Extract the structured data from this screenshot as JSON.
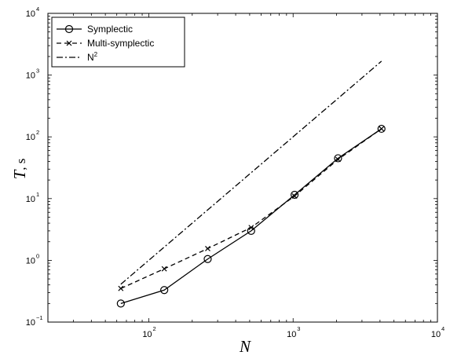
{
  "chart_data": {
    "type": "line",
    "title": "",
    "xlabel": "N",
    "ylabel": "T, s",
    "xscale": "log",
    "yscale": "log",
    "xlim": [
      20,
      10000
    ],
    "ylim": [
      0.1,
      10000
    ],
    "grid": false,
    "legend_position": "top-left",
    "x_ticks": [
      {
        "base": "10",
        "exp": "2"
      },
      {
        "base": "10",
        "exp": "3"
      },
      {
        "base": "10",
        "exp": "4"
      }
    ],
    "y_ticks": [
      {
        "base": "10",
        "exp": "−1"
      },
      {
        "base": "10",
        "exp": "0"
      },
      {
        "base": "10",
        "exp": "1"
      },
      {
        "base": "10",
        "exp": "2"
      },
      {
        "base": "10",
        "exp": "3"
      },
      {
        "base": "10",
        "exp": "4"
      }
    ],
    "series": [
      {
        "name": "Symplectic",
        "marker": "circle",
        "linestyle": "solid",
        "color": "#000000",
        "x": [
          64,
          128,
          256,
          512,
          1024,
          2048,
          4096
        ],
        "y": [
          0.2,
          0.33,
          1.05,
          3.0,
          11.5,
          45,
          135
        ]
      },
      {
        "name": "Multi-symplectic",
        "marker": "x",
        "linestyle": "dashed",
        "color": "#000000",
        "x": [
          64,
          128,
          256,
          512,
          1024,
          2048,
          4096
        ],
        "y": [
          0.35,
          0.73,
          1.55,
          3.4,
          11,
          43,
          135
        ]
      },
      {
        "name": "N",
        "name_sup": "2",
        "marker": "none",
        "linestyle": "dashdot",
        "color": "#000000",
        "x": [
          64,
          4096
        ],
        "y": [
          0.41,
          1680
        ]
      }
    ]
  }
}
